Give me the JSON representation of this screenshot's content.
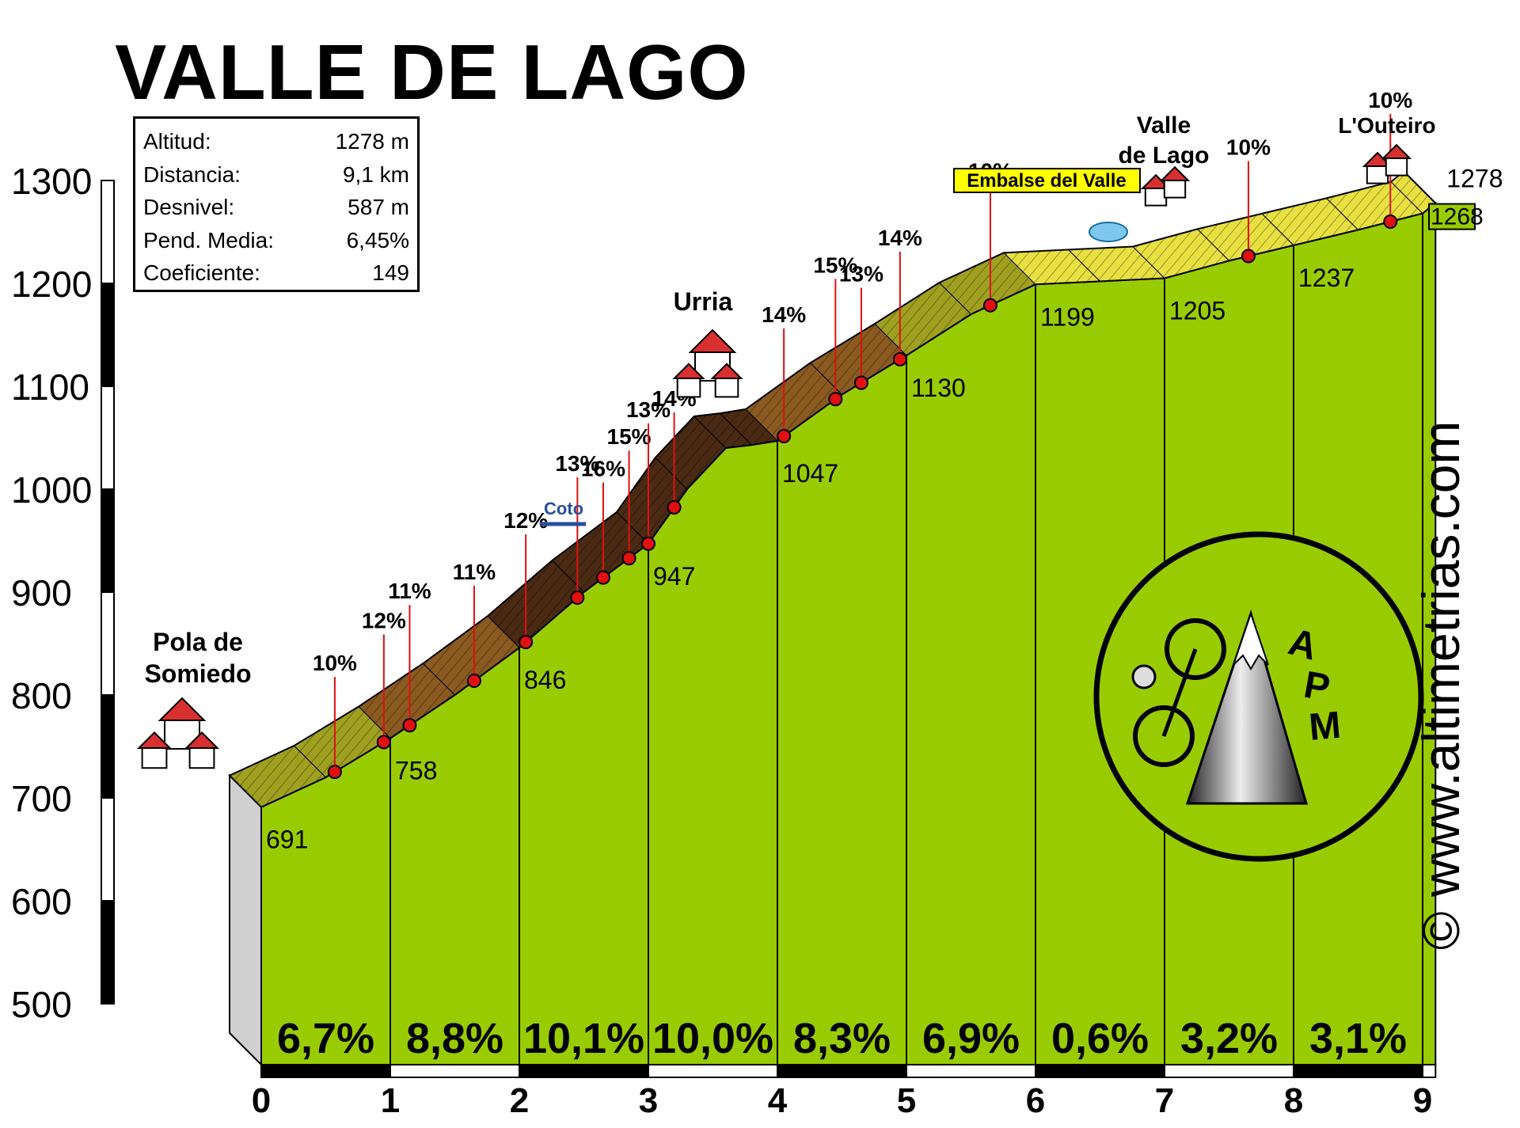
{
  "title": "VALLE DE LAGO",
  "info": [
    {
      "label": "Altitud:",
      "value": "1278 m"
    },
    {
      "label": "Distancia:",
      "value": "9,1 km"
    },
    {
      "label": "Desnivel:",
      "value": "587 m"
    },
    {
      "label": "Pend. Media:",
      "value": "6,45%"
    },
    {
      "label": "Coeficiente:",
      "value": "149"
    }
  ],
  "watermark": "© www.altimetrias.com",
  "colors": {
    "green": "#99cc00",
    "dark_slope": "#4a2a12",
    "brown": "#8a5a20",
    "olive": "#a0a020",
    "yellow": "#e8e040",
    "marker": "#e01010",
    "house_roof": "#d83030",
    "arrow": "#2a4f9a"
  },
  "chart_data": {
    "type": "area",
    "title": "VALLE DE LAGO",
    "xlabel": "",
    "ylabel": "",
    "xlim": [
      0,
      9.1
    ],
    "ylim": [
      500,
      1300
    ],
    "x_ticks": [
      0,
      1,
      2,
      3,
      4,
      5,
      6,
      7,
      8,
      9
    ],
    "y_ticks": [
      500,
      600,
      700,
      800,
      900,
      1000,
      1100,
      1200,
      1300
    ],
    "profile": [
      [
        0,
        691
      ],
      [
        0.5,
        720
      ],
      [
        1,
        758
      ],
      [
        1.5,
        800
      ],
      [
        2,
        846
      ],
      [
        2.5,
        900
      ],
      [
        3,
        947
      ],
      [
        3.3,
        1000
      ],
      [
        3.6,
        1040
      ],
      [
        3.8,
        1043
      ],
      [
        4,
        1047
      ],
      [
        4.5,
        1092
      ],
      [
        5,
        1130
      ],
      [
        5.5,
        1170
      ],
      [
        6,
        1199
      ],
      [
        6.5,
        1202
      ],
      [
        7,
        1205
      ],
      [
        7.5,
        1222
      ],
      [
        8,
        1237
      ],
      [
        8.5,
        1252
      ],
      [
        9,
        1268
      ],
      [
        9.1,
        1278
      ]
    ],
    "segments": [
      {
        "start": 0,
        "end": 1,
        "grade": "6,7%"
      },
      {
        "start": 1,
        "end": 2,
        "grade": "8,8%"
      },
      {
        "start": 2,
        "end": 3,
        "grade": "10,1%"
      },
      {
        "start": 3,
        "end": 4,
        "grade": "10,0%"
      },
      {
        "start": 4,
        "end": 5,
        "grade": "8,3%"
      },
      {
        "start": 5,
        "end": 6,
        "grade": "6,9%"
      },
      {
        "start": 6,
        "end": 7,
        "grade": "0,6%"
      },
      {
        "start": 7,
        "end": 8,
        "grade": "3,2%"
      },
      {
        "start": 8,
        "end": 9,
        "grade": "3,1%"
      }
    ],
    "km_altitudes": [
      {
        "x": 0,
        "label": "691"
      },
      {
        "x": 1,
        "label": "758"
      },
      {
        "x": 2,
        "label": "846"
      },
      {
        "x": 3,
        "label": "947"
      },
      {
        "x": 4,
        "label": "1047"
      },
      {
        "x": 5,
        "label": "1130"
      },
      {
        "x": 6,
        "label": "1199"
      },
      {
        "x": 7,
        "label": "1205"
      },
      {
        "x": 8,
        "label": "1237"
      },
      {
        "x": 9,
        "label": "1268"
      }
    ],
    "end_altitude": "1278",
    "max_grades": [
      {
        "x": 0.57,
        "label": "10%"
      },
      {
        "x": 0.95,
        "label": "12%"
      },
      {
        "x": 1.15,
        "label": "11%"
      },
      {
        "x": 1.65,
        "label": "11%"
      },
      {
        "x": 2.05,
        "label": "12%"
      },
      {
        "x": 2.45,
        "label": "13%"
      },
      {
        "x": 2.65,
        "label": "16%"
      },
      {
        "x": 2.85,
        "label": "15%"
      },
      {
        "x": 3.0,
        "label": "13%"
      },
      {
        "x": 3.2,
        "label": "14%"
      },
      {
        "x": 4.05,
        "label": "14%"
      },
      {
        "x": 4.45,
        "label": "15%"
      },
      {
        "x": 4.65,
        "label": "13%"
      },
      {
        "x": 4.95,
        "label": "14%"
      },
      {
        "x": 5.65,
        "label": "10%"
      },
      {
        "x": 7.65,
        "label": "10%"
      },
      {
        "x": 8.75,
        "label": "10%"
      }
    ],
    "places": [
      {
        "name": "Pola de Somiedo"
      },
      {
        "name": "Urria"
      },
      {
        "name": "Coto"
      },
      {
        "name": "Embalse del Valle"
      },
      {
        "name": "Valle de Lago"
      },
      {
        "name": "L'Outeiro"
      }
    ],
    "logo": "APM"
  }
}
